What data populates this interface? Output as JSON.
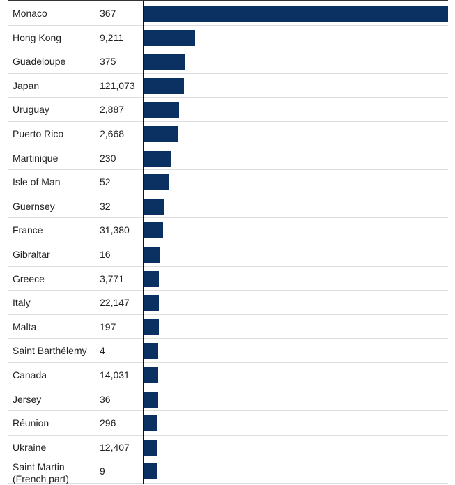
{
  "chart_data": {
    "type": "bar",
    "orientation": "horizontal",
    "bar_color": "#0a3161",
    "value_unit": "percent of largest bar (estimated)",
    "rows": [
      {
        "name": "Monaco",
        "label": "367",
        "bar": 100
      },
      {
        "name": "Hong Kong",
        "label": "9,211",
        "bar": 17
      },
      {
        "name": "Guadeloupe",
        "label": "375",
        "bar": 13.5
      },
      {
        "name": "Japan",
        "label": "121,073",
        "bar": 13.3
      },
      {
        "name": "Uruguay",
        "label": "2,887",
        "bar": 11.7
      },
      {
        "name": "Puerto Rico",
        "label": "2,668",
        "bar": 11.2
      },
      {
        "name": "Martinique",
        "label": "230",
        "bar": 9.2
      },
      {
        "name": "Isle of Man",
        "label": "52",
        "bar": 8.5
      },
      {
        "name": "Guernsey",
        "label": "32",
        "bar": 6.6
      },
      {
        "name": "France",
        "label": "31,380",
        "bar": 6.4
      },
      {
        "name": "Gibraltar",
        "label": "16",
        "bar": 5.5
      },
      {
        "name": "Greece",
        "label": "3,771",
        "bar": 5.0
      },
      {
        "name": "Italy",
        "label": "22,147",
        "bar": 5.0
      },
      {
        "name": "Malta",
        "label": "197",
        "bar": 5.0
      },
      {
        "name": "Saint Barthélemy",
        "label": "4",
        "bar": 4.8
      },
      {
        "name": "Canada",
        "label": "14,031",
        "bar": 4.8
      },
      {
        "name": "Jersey",
        "label": "36",
        "bar": 4.8
      },
      {
        "name": "Réunion",
        "label": "296",
        "bar": 4.6
      },
      {
        "name": "Ukraine",
        "label": "12,407",
        "bar": 4.6
      },
      {
        "name": "Saint Martin (French part)",
        "label": "9",
        "bar": 4.6
      }
    ]
  }
}
